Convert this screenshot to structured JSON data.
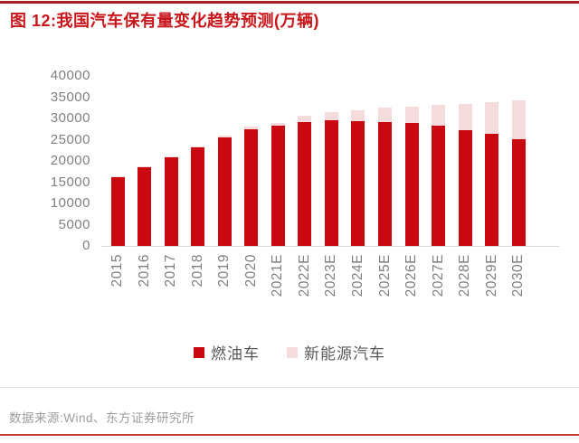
{
  "header": {
    "title": "图 12:我国汽车保有量变化趋势预测(万辆)"
  },
  "footer": {
    "source": "数据来源:Wind、东方证券研究所"
  },
  "colors": {
    "title_red": "#c9161b",
    "rule_top": "#a42322",
    "rule_bottom": "#c23a32",
    "bar_red": "#c9090f",
    "bar_pink": "#f6dbdc",
    "axis_text": "#7f7f7f",
    "legend_text": "#595959",
    "source_text": "#9c9c9c",
    "axis_line": "#d6d6d6",
    "divider": "#e3e3e3"
  },
  "chart_data": {
    "type": "bar",
    "stacked": true,
    "title": "图 12:我国汽车保有量变化趋势预测(万辆)",
    "unit": "万辆",
    "categories": [
      "2015",
      "2016",
      "2017",
      "2018",
      "2019",
      "2020",
      "2021E",
      "2022E",
      "2023E",
      "2024E",
      "2025E",
      "2026E",
      "2027E",
      "2028E",
      "2029E",
      "2030E"
    ],
    "series": [
      {
        "name": "燃油车",
        "color": "#c9090f",
        "values": [
          16400,
          18600,
          21000,
          23100,
          25500,
          27500,
          28300,
          29100,
          29600,
          29400,
          29100,
          28900,
          28300,
          27200,
          26300,
          25200
        ]
      },
      {
        "name": "新能源汽车",
        "color": "#f6dbdc",
        "values": [
          60,
          90,
          150,
          260,
          380,
          490,
          600,
          1500,
          1900,
          2600,
          3400,
          3900,
          4800,
          6200,
          7600,
          9000
        ]
      }
    ],
    "ylim": [
      0,
      40000
    ],
    "yticks": [
      0,
      5000,
      10000,
      15000,
      20000,
      25000,
      30000,
      35000,
      40000
    ],
    "grid": false,
    "legend_position": "bottom"
  }
}
